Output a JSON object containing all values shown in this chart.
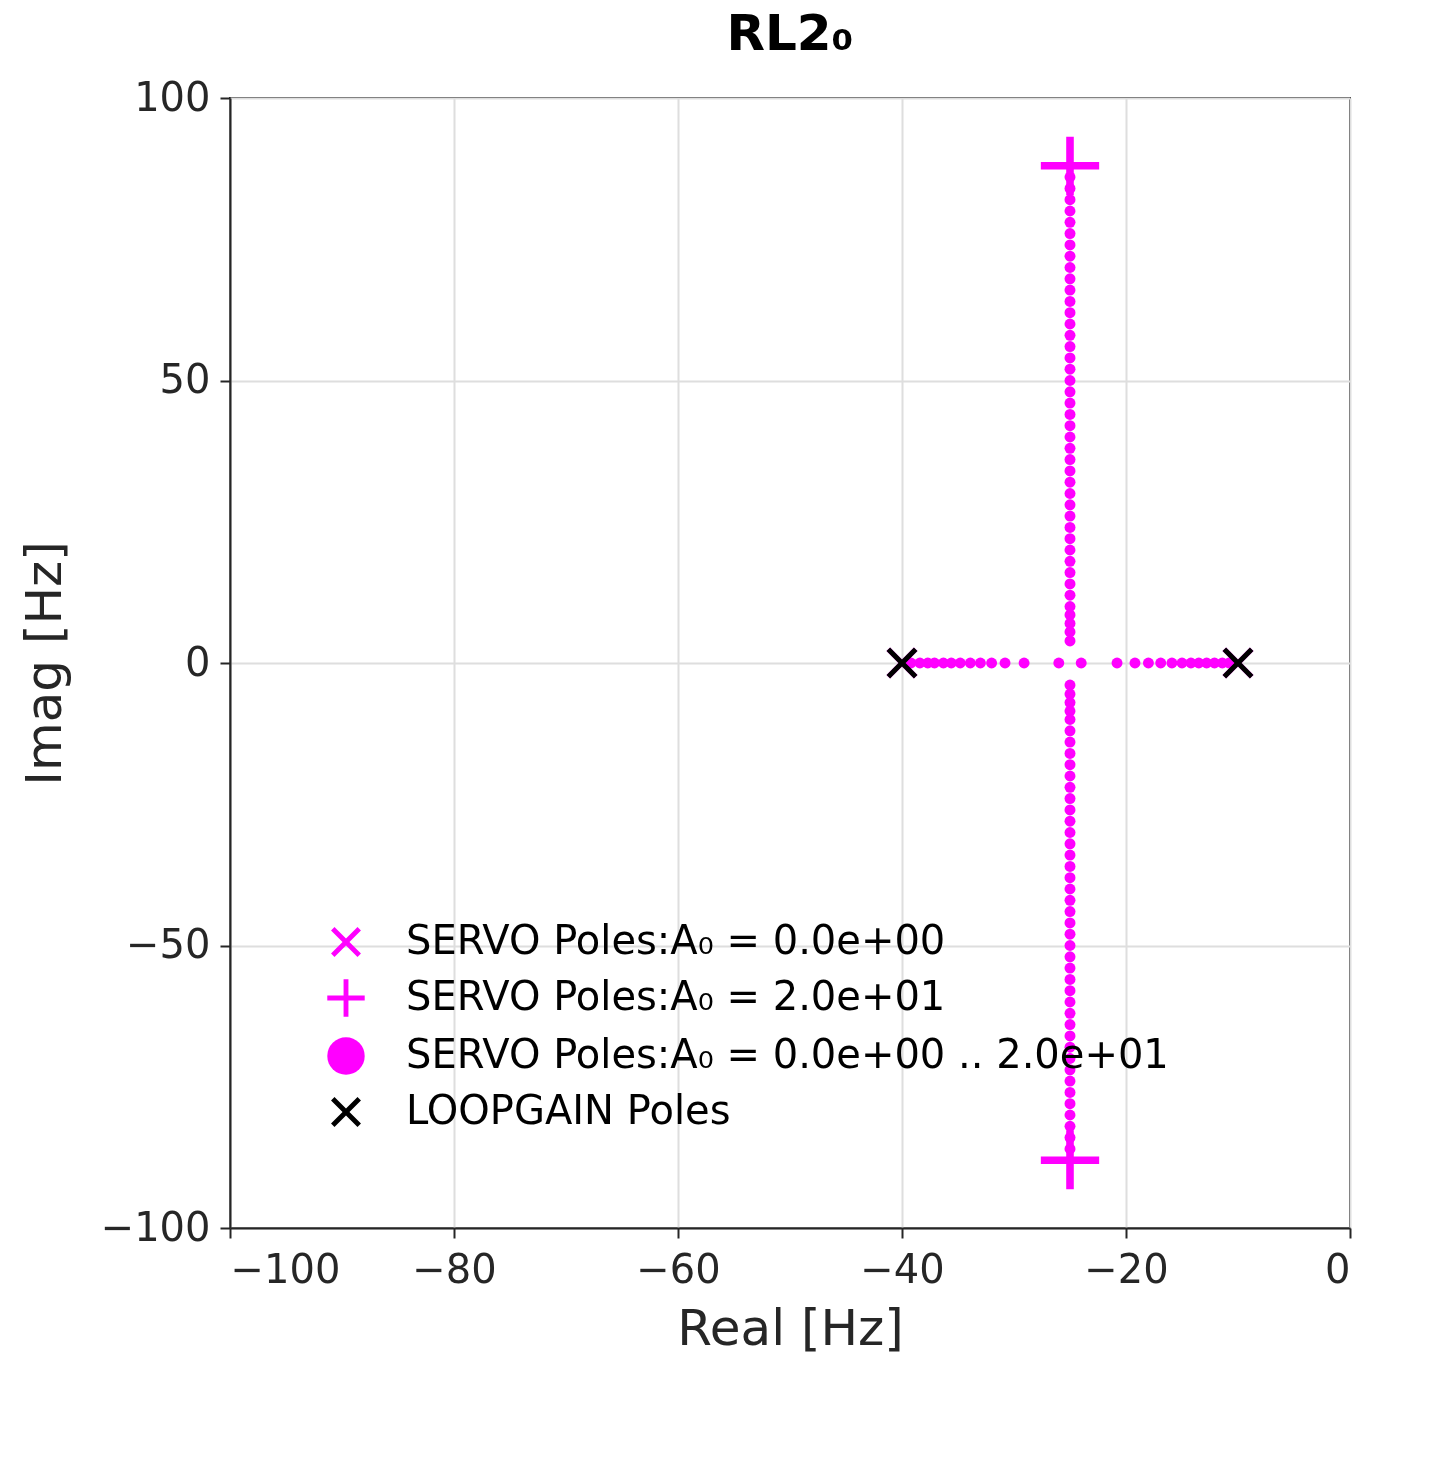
{
  "chart_data": {
    "type": "scatter",
    "title": "RL2₀",
    "xlabel": "Real [Hz]",
    "ylabel": "Imag [Hz]",
    "xlim": [
      -100,
      0
    ],
    "xticks": [
      -100,
      -80,
      -60,
      -40,
      -20,
      0
    ],
    "ylim": [
      -100,
      100
    ],
    "yticks": [
      -100,
      -50,
      0,
      50,
      100
    ],
    "grid": true,
    "legend": "bottom left",
    "series": [
      {
        "name": "SERVO Poles:A₀ =  0.0e+00",
        "color": "#ff00ff",
        "marker": "cross",
        "x": [
          -40,
          -10
        ],
        "values": [
          0,
          0
        ]
      },
      {
        "name": "SERVO Poles:A₀ =  2.0e+01",
        "color": "#ff00ff",
        "marker": "plus",
        "x": [
          -25,
          -25
        ],
        "values": [
          88,
          -88
        ]
      },
      {
        "name": "SERVO Poles:A₀ =  0.0e+00 ..  2.0e+01",
        "color": "#ff00ff",
        "marker": "circle",
        "x": [
          -39.2,
          -38.4,
          -37.7,
          -37.1,
          -36.3,
          -35.6,
          -34.8,
          -33.9,
          -33,
          -32,
          -30.8,
          -29.1,
          -26,
          -24,
          -20.8,
          -19.2,
          -18,
          -16.9,
          -15.9,
          -15,
          -14.2,
          -13.5,
          -12.8,
          -12.1,
          -11.4,
          -10.8,
          -25,
          -25,
          -25,
          -25,
          -25,
          -25,
          -25,
          -25,
          -25,
          -25,
          -25,
          -25,
          -25,
          -25,
          -25,
          -25,
          -25,
          -25,
          -25,
          -25,
          -25,
          -25,
          -25,
          -25,
          -25,
          -25,
          -25,
          -25,
          -25,
          -25,
          -25,
          -25,
          -25,
          -25,
          -25,
          -25,
          -25,
          -25,
          -25,
          -25,
          -25,
          -25,
          -25,
          -25,
          -25,
          -25,
          -25,
          -25,
          -25,
          -25,
          -25,
          -25,
          -25,
          -25,
          -25,
          -25,
          -25,
          -25,
          -25,
          -25,
          -25,
          -25,
          -25,
          -25,
          -25,
          -25,
          -25,
          -25,
          -25,
          -25,
          -25,
          -25,
          -25,
          -25,
          -25,
          -25,
          -25,
          -25,
          -25,
          -25,
          -25,
          -25,
          -25,
          -25,
          -25,
          -25
        ],
        "values": [
          0,
          0,
          0,
          0,
          0,
          0,
          0,
          0,
          0,
          0,
          0,
          0,
          0,
          0,
          0,
          0,
          0,
          0,
          0,
          0,
          0,
          0,
          0,
          0,
          0,
          0,
          3.9,
          5.5,
          7,
          8.5,
          10,
          12,
          14,
          16,
          18,
          20,
          22,
          24,
          26,
          28,
          30,
          32,
          34,
          36,
          38,
          40,
          42,
          44,
          46,
          48,
          50,
          52,
          54,
          56,
          58,
          60,
          62,
          64,
          66,
          68,
          70,
          72,
          74,
          76,
          78,
          80,
          82,
          84,
          86,
          -3.9,
          -5.5,
          -7,
          -8.5,
          -10,
          -12,
          -14,
          -16,
          -18,
          -20,
          -22,
          -24,
          -26,
          -28,
          -30,
          -32,
          -34,
          -36,
          -38,
          -40,
          -42,
          -44,
          -46,
          -48,
          -50,
          -52,
          -54,
          -56,
          -58,
          -60,
          -62,
          -64,
          -66,
          -68,
          -70,
          -72,
          -74,
          -76,
          -78,
          -80,
          -82,
          -84,
          -86
        ]
      },
      {
        "name": "LOOPGAIN Poles",
        "color": "#000000",
        "marker": "cross",
        "x": [
          -40,
          -10
        ],
        "values": [
          0,
          0
        ]
      }
    ]
  }
}
